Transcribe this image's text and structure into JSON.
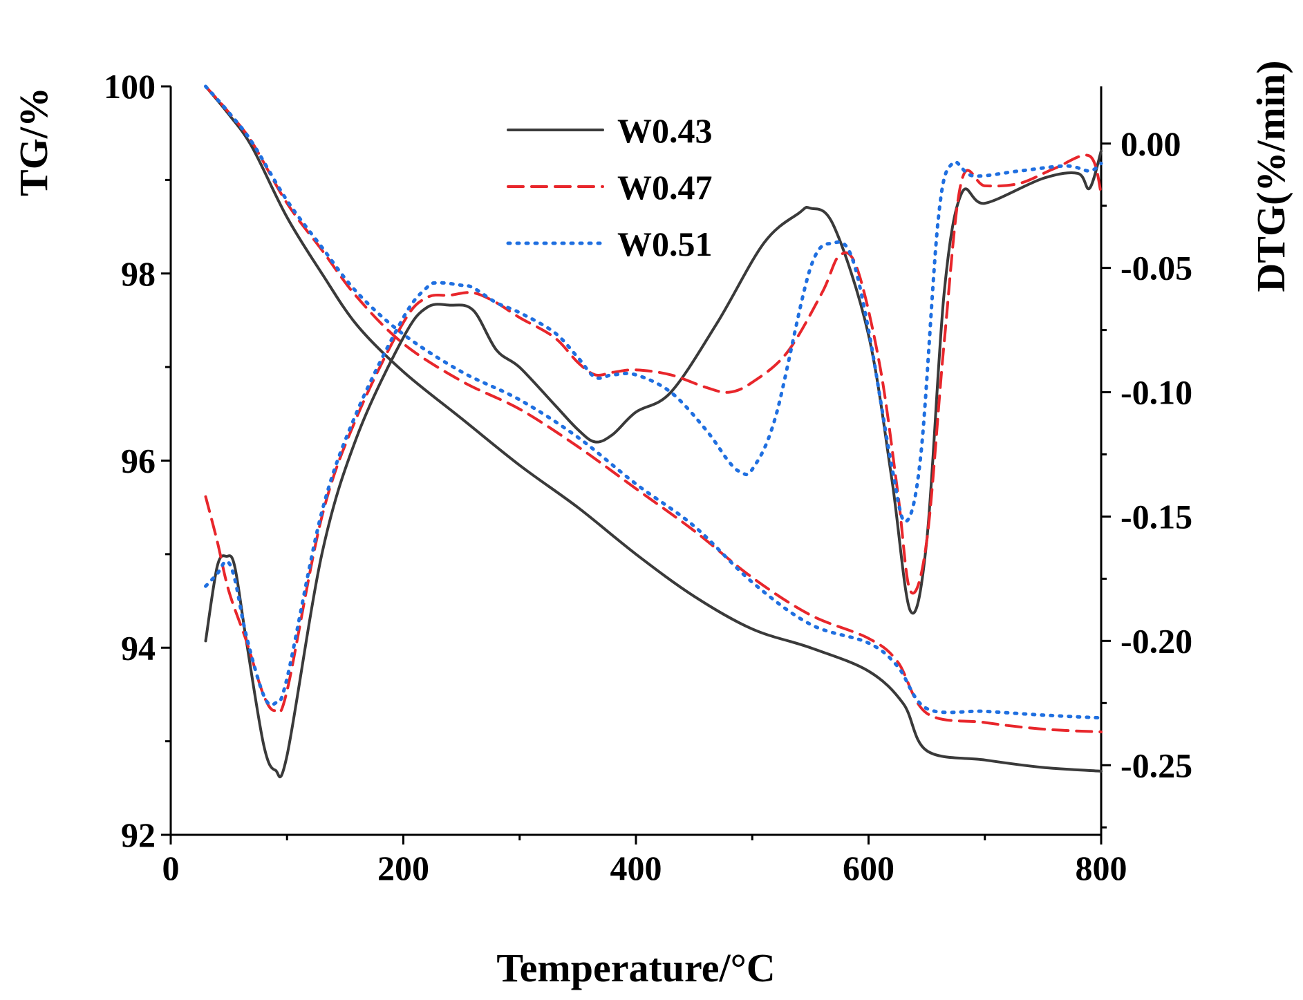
{
  "chart_data": {
    "type": "line",
    "title": "",
    "xlabel": "Temperature/°C",
    "ylabel_left": "TG/%",
    "ylabel_right": "DTG(%/min)",
    "xlim": [
      0,
      800
    ],
    "ylim_left": [
      92,
      100
    ],
    "ylim_right": [
      -0.278,
      0.023
    ],
    "x_ticks": [
      0,
      200,
      400,
      600,
      800
    ],
    "y_left_ticks": [
      92,
      94,
      96,
      98,
      100
    ],
    "y_right_ticks": [
      0.0,
      -0.05,
      -0.1,
      -0.15,
      -0.2,
      -0.25
    ],
    "y_right_tick_labels": [
      "0.00",
      "-0.05",
      "-0.10",
      "-0.15",
      "-0.20",
      "-0.25"
    ],
    "legend": {
      "position": "top-center",
      "entries": [
        "W0.43",
        "W0.47",
        "W0.51"
      ]
    },
    "series_styles": [
      {
        "name": "W0.43",
        "color": "#3a3a3a",
        "dash": "solid"
      },
      {
        "name": "W0.47",
        "color": "#e8262b",
        "dash": "dashed"
      },
      {
        "name": "W0.51",
        "color": "#1f6fe0",
        "dash": "dotted"
      }
    ],
    "tg_series": [
      {
        "name": "W0.43",
        "x": [
          30,
          50,
          70,
          100,
          130,
          160,
          200,
          250,
          300,
          350,
          400,
          450,
          500,
          550,
          600,
          630,
          650,
          700,
          750,
          800
        ],
        "y": [
          100,
          99.7,
          99.35,
          98.6,
          98.0,
          97.45,
          96.95,
          96.45,
          95.95,
          95.5,
          95.0,
          94.55,
          94.2,
          94.0,
          93.75,
          93.4,
          92.9,
          92.8,
          92.72,
          92.68
        ]
      },
      {
        "name": "W0.47",
        "x": [
          30,
          50,
          70,
          100,
          130,
          160,
          200,
          250,
          300,
          350,
          400,
          450,
          500,
          550,
          600,
          625,
          650,
          700,
          750,
          800
        ],
        "y": [
          100,
          99.72,
          99.4,
          98.75,
          98.25,
          97.75,
          97.25,
          96.85,
          96.55,
          96.15,
          95.7,
          95.25,
          94.75,
          94.35,
          94.1,
          93.85,
          93.3,
          93.2,
          93.13,
          93.1
        ]
      },
      {
        "name": "W0.51",
        "x": [
          30,
          50,
          70,
          100,
          130,
          160,
          200,
          250,
          300,
          350,
          400,
          450,
          500,
          550,
          600,
          625,
          650,
          700,
          750,
          800
        ],
        "y": [
          100,
          99.72,
          99.4,
          98.78,
          98.28,
          97.8,
          97.35,
          96.95,
          96.65,
          96.25,
          95.75,
          95.3,
          94.7,
          94.25,
          94.05,
          93.8,
          93.35,
          93.32,
          93.28,
          93.25
        ]
      }
    ],
    "dtg_series": [
      {
        "name": "W0.43",
        "x": [
          30,
          40,
          48,
          55,
          65,
          80,
          90,
          100,
          130,
          160,
          200,
          220,
          240,
          260,
          280,
          300,
          330,
          350,
          365,
          380,
          400,
          430,
          470,
          510,
          540,
          550,
          570,
          600,
          620,
          636,
          650,
          665,
          680,
          700,
          750,
          780,
          790,
          800
        ],
        "y": [
          -0.2,
          -0.17,
          -0.166,
          -0.17,
          -0.2,
          -0.242,
          -0.252,
          -0.246,
          -0.165,
          -0.118,
          -0.078,
          -0.066,
          -0.065,
          -0.067,
          -0.083,
          -0.09,
          -0.105,
          -0.115,
          -0.12,
          -0.117,
          -0.108,
          -0.1,
          -0.072,
          -0.04,
          -0.028,
          -0.026,
          -0.033,
          -0.077,
          -0.135,
          -0.188,
          -0.16,
          -0.06,
          -0.02,
          -0.024,
          -0.014,
          -0.012,
          -0.018,
          -0.003
        ]
      },
      {
        "name": "W0.47",
        "x": [
          30,
          40,
          50,
          65,
          80,
          90,
          100,
          130,
          160,
          200,
          220,
          240,
          260,
          280,
          300,
          330,
          350,
          365,
          380,
          400,
          430,
          460,
          480,
          500,
          530,
          560,
          575,
          590,
          610,
          625,
          636,
          650,
          665,
          680,
          700,
          730,
          760,
          790,
          800
        ],
        "y": [
          -0.142,
          -0.16,
          -0.18,
          -0.2,
          -0.222,
          -0.228,
          -0.22,
          -0.15,
          -0.11,
          -0.072,
          -0.062,
          -0.061,
          -0.06,
          -0.064,
          -0.07,
          -0.078,
          -0.088,
          -0.093,
          -0.092,
          -0.091,
          -0.093,
          -0.098,
          -0.1,
          -0.096,
          -0.084,
          -0.06,
          -0.045,
          -0.05,
          -0.09,
          -0.14,
          -0.18,
          -0.16,
          -0.08,
          -0.015,
          -0.017,
          -0.016,
          -0.01,
          -0.005,
          -0.02
        ]
      },
      {
        "name": "W0.51",
        "x": [
          30,
          40,
          48,
          55,
          65,
          80,
          90,
          100,
          130,
          160,
          200,
          220,
          230,
          250,
          260,
          280,
          300,
          330,
          350,
          365,
          380,
          400,
          430,
          460,
          480,
          490,
          500,
          520,
          550,
          570,
          585,
          600,
          620,
          632,
          645,
          660,
          672,
          690,
          730,
          770,
          790,
          800
        ],
        "y": [
          -0.178,
          -0.173,
          -0.168,
          -0.175,
          -0.198,
          -0.222,
          -0.225,
          -0.215,
          -0.148,
          -0.108,
          -0.07,
          -0.058,
          -0.056,
          -0.057,
          -0.058,
          -0.064,
          -0.068,
          -0.076,
          -0.086,
          -0.094,
          -0.093,
          -0.093,
          -0.1,
          -0.115,
          -0.128,
          -0.132,
          -0.131,
          -0.11,
          -0.05,
          -0.04,
          -0.045,
          -0.075,
          -0.13,
          -0.152,
          -0.125,
          -0.03,
          -0.008,
          -0.013,
          -0.011,
          -0.009,
          -0.011,
          -0.008
        ]
      }
    ]
  }
}
